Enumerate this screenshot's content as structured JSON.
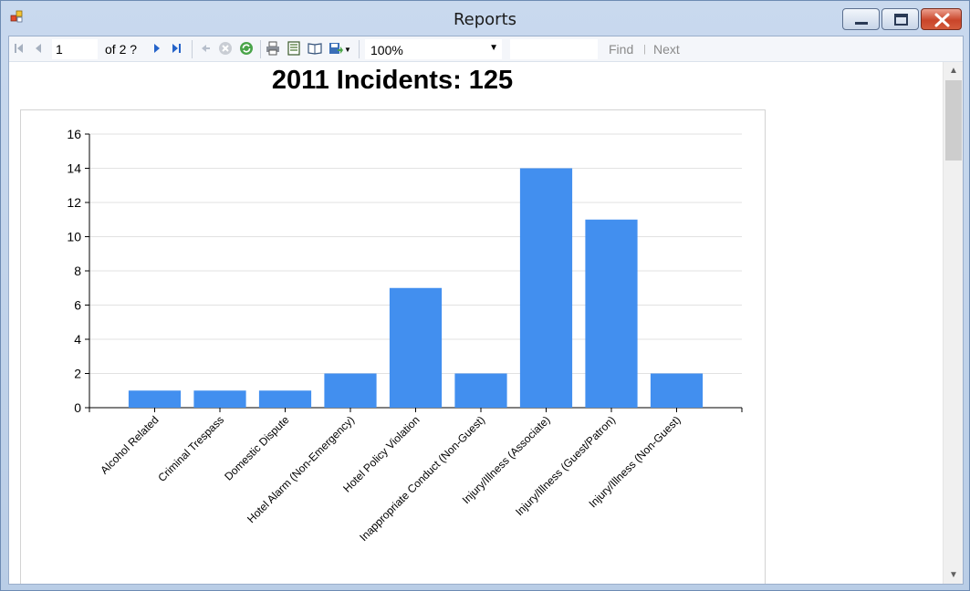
{
  "window": {
    "title": "Reports"
  },
  "toolbar": {
    "page_current": "1",
    "page_of": "of  2 ?",
    "zoom": "100%",
    "find_label": "Find",
    "find_separator": "|",
    "next_label": "Next"
  },
  "report": {
    "title": "2011 Incidents: 125"
  },
  "chart_data": {
    "type": "bar",
    "title": "2011 Incidents: 125",
    "xlabel": "",
    "ylabel": "",
    "ylim": [
      0,
      16
    ],
    "yticks": [
      0,
      2,
      4,
      6,
      8,
      10,
      12,
      14,
      16
    ],
    "grid": true,
    "bar_color": "#428fef",
    "categories": [
      "Alcohol Related",
      "Criminal Trespass",
      "Domestic Dispute",
      "Hotel Alarm (Non-Emergency)",
      "Hotel Policy Violation",
      "Inappropriate Conduct (Non-Guest)",
      "Injury/Illness (Associate)",
      "Injury/Illness (Guest/Patron)",
      "Injury/Illness (Non-Guest)"
    ],
    "values": [
      1,
      1,
      1,
      2,
      7,
      2,
      14,
      11,
      2
    ]
  }
}
